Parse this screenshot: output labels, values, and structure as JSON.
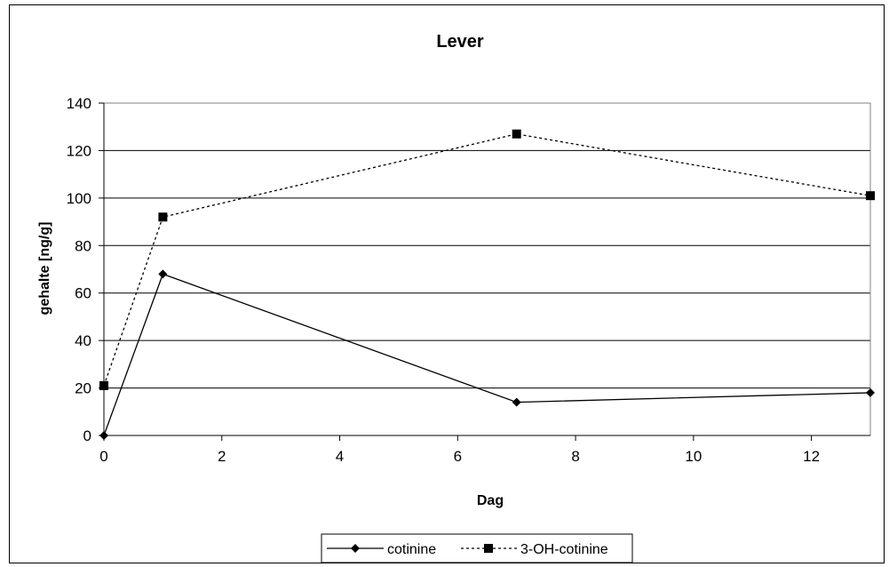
{
  "chart_data": {
    "type": "line",
    "title": "Lever",
    "xlabel": "Dag",
    "ylabel": "gehalte [ng/g]",
    "xlim": [
      0,
      13
    ],
    "ylim": [
      0,
      140
    ],
    "xticks": [
      0,
      2,
      4,
      6,
      8,
      10,
      12
    ],
    "yticks": [
      0,
      20,
      40,
      60,
      80,
      100,
      120,
      140
    ],
    "grid": "horizontal",
    "legend": "bottom",
    "series": [
      {
        "name": "cotinine",
        "line": "solid",
        "marker": "diamond",
        "color": "#000000",
        "points": [
          {
            "x": 0,
            "y": 0
          },
          {
            "x": 1,
            "y": 68
          },
          {
            "x": 7,
            "y": 14
          },
          {
            "x": 13,
            "y": 18
          }
        ]
      },
      {
        "name": "3-OH-cotinine",
        "line": "dashed",
        "marker": "square",
        "color": "#000000",
        "points": [
          {
            "x": 0,
            "y": 21
          },
          {
            "x": 1,
            "y": 92
          },
          {
            "x": 7,
            "y": 127
          },
          {
            "x": 13,
            "y": 101
          }
        ]
      }
    ]
  }
}
